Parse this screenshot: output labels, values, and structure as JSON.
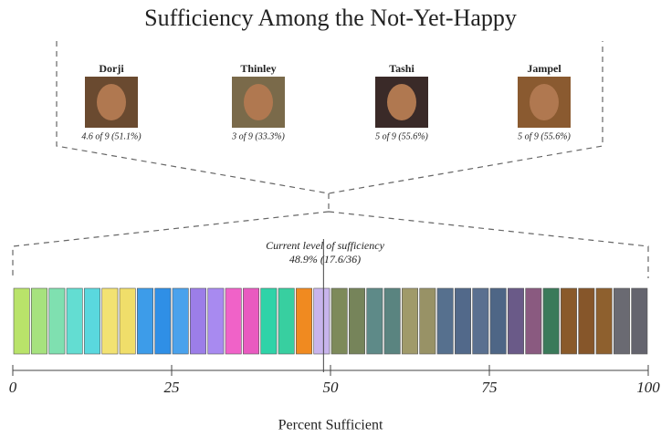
{
  "chart_data": {
    "type": "segments",
    "title": "Sufficiency Among the Not-Yet-Happy",
    "people": [
      {
        "name": "Dorji",
        "caption": "4.6 of 9 (51.1%)"
      },
      {
        "name": "Thinley",
        "caption": "3 of 9 (33.3%)"
      },
      {
        "name": "Tashi",
        "caption": "5 of 9 (55.6%)"
      },
      {
        "name": "Jampel",
        "caption": "5 of 9 (55.6%)"
      }
    ],
    "annotation": "Current level of sufficiency",
    "current_level": {
      "value": 48.9,
      "label": "48.9% (17.6/36)"
    },
    "segment_colors": [
      "#b9e36a",
      "#a6e27e",
      "#7fe0b0",
      "#63ddd2",
      "#5ad8de",
      "#f2e272",
      "#f0de6a",
      "#3d9ce9",
      "#2f8fe6",
      "#4aa2ec",
      "#9c7ee8",
      "#a88af0",
      "#f062c8",
      "#e95ac0",
      "#2fd3a8",
      "#38cfa0",
      "#f08a20",
      "#c8b4ec",
      "#7d8a5a",
      "#76845a",
      "#5e8a88",
      "#5a8480",
      "#a09a6a",
      "#989266",
      "#56708e",
      "#52698a",
      "#5a7090",
      "#4e6686",
      "#6a5a88",
      "#8a5a80",
      "#3a7a5a",
      "#8a5a2a",
      "#86562a",
      "#8e602e",
      "#6a6a72",
      "#64646e"
    ],
    "xlim": [
      0,
      100
    ],
    "xticks": [
      0,
      25,
      50,
      75,
      100
    ],
    "xlabel": "Percent Sufficient"
  }
}
